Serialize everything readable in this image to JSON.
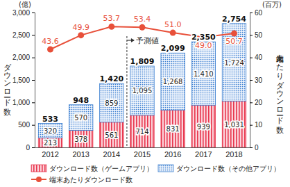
{
  "chart_data": {
    "type": "bar",
    "stacked": true,
    "data_labels": true,
    "legend": "bottom",
    "categories": [
      "2012",
      "2013",
      "2014",
      "2015",
      "2016",
      "2017",
      "2018"
    ],
    "y_label": "ダウンロード数",
    "y_unit": "(億)",
    "y2_label": "端末あたりダウンロード数",
    "y2_unit": "(百万)",
    "ylim": [
      0,
      3000
    ],
    "yticks": [
      0,
      500,
      {
        "value": 1000,
        "label": "1,000"
      },
      {
        "value": 1500,
        "label": "1,500"
      },
      {
        "value": 2000,
        "label": "2,000"
      },
      {
        "value": 2500,
        "label": "2,500"
      },
      {
        "value": 3000,
        "label": "3,000"
      }
    ],
    "y2lim": [
      0,
      60
    ],
    "y2ticks": [
      0,
      10,
      20,
      30,
      40,
      50,
      60
    ],
    "series": [
      {
        "name": "ダウンロード数（ゲームアプリ）",
        "type": "bar",
        "color": "#e8384f",
        "values": [
          213,
          378,
          561,
          714,
          831,
          939,
          1031
        ],
        "value_labels": [
          "213",
          "378",
          "561",
          "714",
          "831",
          "939",
          "1,031"
        ]
      },
      {
        "name": "ダウンロード数（その他アプリ）",
        "type": "bar",
        "color": "#3b7fd0",
        "values": [
          320,
          570,
          859,
          1095,
          1268,
          1410,
          1724
        ],
        "value_labels": [
          "320",
          "570",
          "859",
          "1,095",
          "1,268",
          "1,410",
          "1,724"
        ]
      },
      {
        "name": "端末あたりダウンロード数",
        "type": "line",
        "axis": "y2",
        "color": "#e8503a",
        "marker": "circle",
        "values": [
          43.6,
          49.9,
          53.7,
          53.4,
          51.0,
          49.0,
          50.7
        ],
        "value_labels": [
          "43.6",
          "49.9",
          "53.7",
          "53.4",
          "51.0",
          "49.0",
          "50.7"
        ]
      }
    ],
    "totals": {
      "values": [
        533,
        948,
        1420,
        1809,
        2099,
        2350,
        2754
      ],
      "value_labels": [
        "533",
        "948",
        "1,420",
        "1,809",
        "2,099",
        "2,350",
        "2,754"
      ]
    },
    "annotations": [
      {
        "text": "予測値",
        "from": "2015"
      }
    ]
  }
}
